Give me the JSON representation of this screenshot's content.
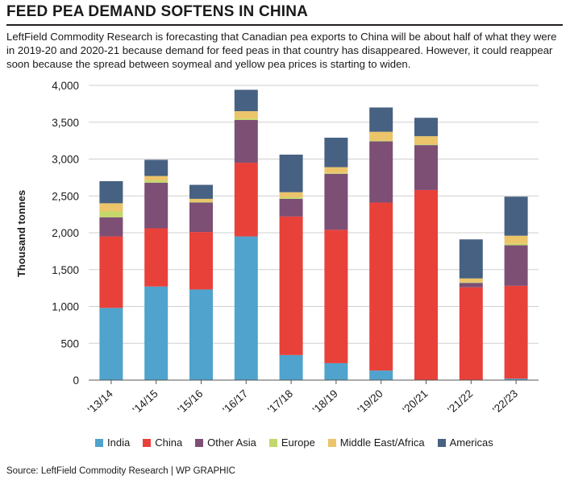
{
  "header": {
    "title": "FEED PEA DEMAND SOFTENS IN CHINA",
    "subtitle": "LeftField Commodity Research is forecasting that Canadian pea exports to China will be about half of what they were in 2019-20 and 2020-21 because demand for feed peas in that country has disappeared. However, it could reappear soon because the spread between soymeal and yellow pea prices is starting to widen."
  },
  "footer": {
    "source": "Source: LeftField Commodity Research  |  WP GRAPHIC"
  },
  "chart_data": {
    "type": "bar",
    "stacked": true,
    "title": "",
    "xlabel": "",
    "ylabel": "Thousand tonnes",
    "ylim": [
      0,
      4000
    ],
    "yticks": [
      0,
      500,
      1000,
      1500,
      2000,
      2500,
      3000,
      3500,
      4000
    ],
    "ytick_labels": [
      "0",
      "500",
      "1,000",
      "1,500",
      "2,000",
      "2,500",
      "3,000",
      "3,500",
      "4,000"
    ],
    "grid": true,
    "legend_position": "bottom",
    "categories": [
      "'13/14",
      "'14/15",
      "'15/16",
      "'16/17",
      "'17/18",
      "'18/19",
      "'19/20",
      "'20/21",
      "'21/22",
      "'22/23"
    ],
    "series": [
      {
        "name": "India",
        "color": "#4fa3cc",
        "values": [
          980,
          1270,
          1230,
          1950,
          340,
          230,
          130,
          0,
          0,
          20
        ]
      },
      {
        "name": "China",
        "color": "#e8413a",
        "values": [
          970,
          790,
          780,
          1000,
          1880,
          1810,
          2280,
          2580,
          1260,
          1260
        ]
      },
      {
        "name": "Other Asia",
        "color": "#7d4f75",
        "values": [
          260,
          620,
          400,
          580,
          240,
          760,
          830,
          610,
          60,
          550
        ]
      },
      {
        "name": "Europe",
        "color": "#c3d86a",
        "values": [
          80,
          30,
          10,
          20,
          20,
          10,
          10,
          10,
          10,
          20
        ]
      },
      {
        "name": "Middle East/Africa",
        "color": "#ecc46a",
        "values": [
          110,
          60,
          40,
          100,
          70,
          80,
          120,
          110,
          50,
          110
        ]
      },
      {
        "name": "Americas",
        "color": "#476182",
        "values": [
          300,
          220,
          190,
          290,
          510,
          400,
          330,
          250,
          530,
          530
        ]
      }
    ]
  }
}
